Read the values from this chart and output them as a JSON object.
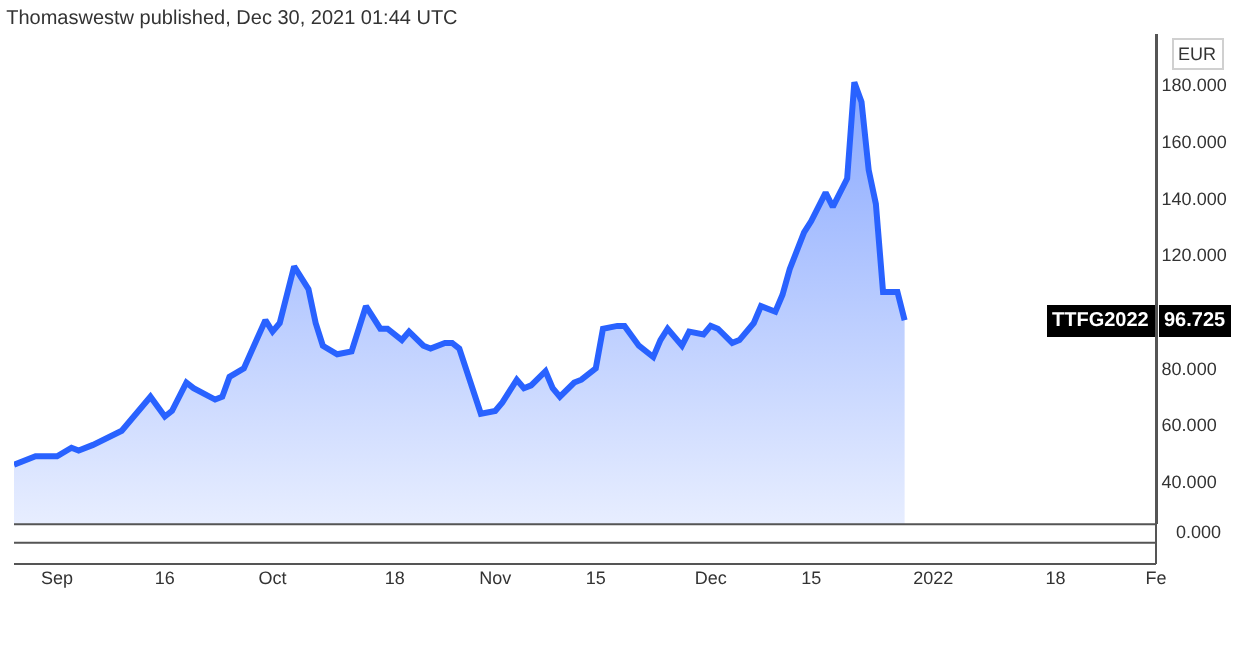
{
  "chart_data": [
    {
      "type": "area",
      "title": "Thomaswestw published, Dec 30, 2021 01:44 UTC",
      "ylabel": "EUR",
      "x": [
        "2021-08-26",
        "2021-08-29",
        "2021-09-01",
        "2021-09-03",
        "2021-09-04",
        "2021-09-06",
        "2021-09-10",
        "2021-09-11",
        "2021-09-14",
        "2021-09-16",
        "2021-09-17",
        "2021-09-19",
        "2021-09-20",
        "2021-09-23",
        "2021-09-24",
        "2021-09-25",
        "2021-09-27",
        "2021-09-30",
        "2021-10-01",
        "2021-10-02",
        "2021-10-04",
        "2021-10-06",
        "2021-10-07",
        "2021-10-08",
        "2021-10-10",
        "2021-10-12",
        "2021-10-14",
        "2021-10-16",
        "2021-10-17",
        "2021-10-19",
        "2021-10-20",
        "2021-10-22",
        "2021-10-23",
        "2021-10-25",
        "2021-10-26",
        "2021-10-27",
        "2021-10-30",
        "2021-11-01",
        "2021-11-02",
        "2021-11-04",
        "2021-11-05",
        "2021-11-06",
        "2021-11-08",
        "2021-11-09",
        "2021-11-10",
        "2021-11-12",
        "2021-11-13",
        "2021-11-15",
        "2021-11-16",
        "2021-11-18",
        "2021-11-19",
        "2021-11-21",
        "2021-11-23",
        "2021-11-24",
        "2021-11-25",
        "2021-11-27",
        "2021-11-28",
        "2021-11-30",
        "2021-12-01",
        "2021-12-02",
        "2021-12-04",
        "2021-12-05",
        "2021-12-07",
        "2021-12-08",
        "2021-12-10",
        "2021-12-11",
        "2021-12-12",
        "2021-12-14",
        "2021-12-15",
        "2021-12-17",
        "2021-12-18",
        "2021-12-20",
        "2021-12-21",
        "2021-12-22",
        "2021-12-23",
        "2021-12-24",
        "2021-12-25",
        "2021-12-27",
        "2021-12-28"
      ],
      "series": [
        {
          "name": "TTFG2022",
          "color": "#2962ff",
          "values": [
            46,
            49,
            49,
            52,
            51,
            53,
            58,
            61,
            70,
            63,
            65,
            75,
            73,
            69,
            70,
            77,
            80,
            97,
            93,
            96,
            116,
            108,
            96,
            88,
            85,
            86,
            102,
            94,
            94,
            90,
            93,
            88,
            87,
            89,
            89,
            87,
            64,
            65,
            68,
            76,
            73,
            74,
            79,
            73,
            70,
            75,
            76,
            80,
            94,
            95,
            95,
            88,
            84,
            90,
            94,
            88,
            93,
            92,
            95,
            94,
            89,
            90,
            96,
            102,
            100,
            106,
            115,
            128,
            132,
            142,
            137,
            147,
            181,
            174,
            150,
            138,
            107,
            107,
            97
          ]
        }
      ],
      "xlim": [
        "2021-08-26",
        "2022-02-01"
      ],
      "xticks": [
        {
          "value": "2021-09-01",
          "label": "Sep"
        },
        {
          "value": "2021-09-16",
          "label": "16"
        },
        {
          "value": "2021-10-01",
          "label": "Oct"
        },
        {
          "value": "2021-10-18",
          "label": "18"
        },
        {
          "value": "2021-11-01",
          "label": "Nov"
        },
        {
          "value": "2021-11-15",
          "label": "15"
        },
        {
          "value": "2021-12-01",
          "label": "Dec"
        },
        {
          "value": "2021-12-15",
          "label": "15"
        },
        {
          "value": "2022-01-01",
          "label": "2022"
        },
        {
          "value": "2022-01-18",
          "label": "18"
        },
        {
          "value": "2022-02-01",
          "label": "Fe"
        }
      ],
      "ylim": [
        25,
        198
      ],
      "yticks": [
        {
          "value": 40,
          "label": "40.000"
        },
        {
          "value": 60,
          "label": "60.000"
        },
        {
          "value": 80,
          "label": "80.000"
        },
        {
          "value": 120,
          "label": "120.000"
        },
        {
          "value": 140,
          "label": "140.000"
        },
        {
          "value": 160,
          "label": "160.000"
        },
        {
          "value": 180,
          "label": "180.000"
        }
      ],
      "annotations": [
        "96.725"
      ]
    },
    {
      "type": "other",
      "annotations": [
        "0.000"
      ]
    }
  ]
}
